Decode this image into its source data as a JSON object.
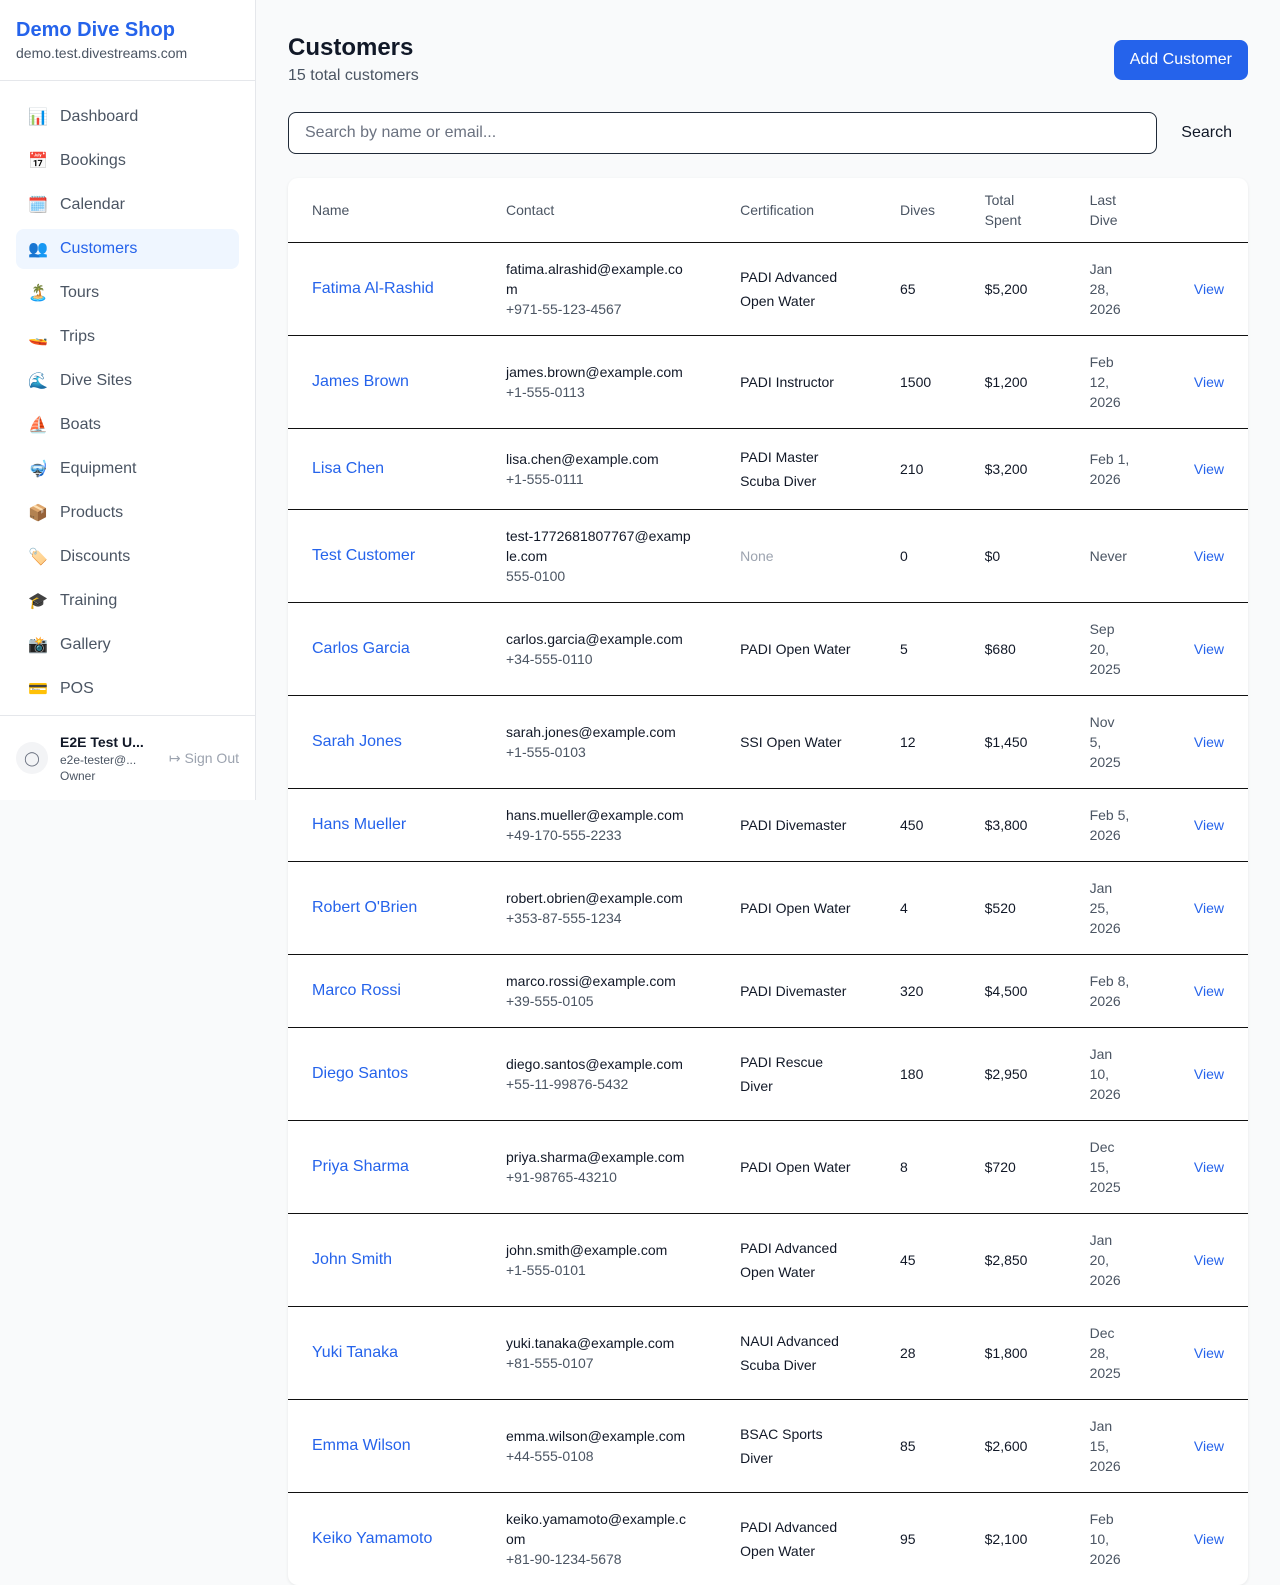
{
  "sidebar": {
    "shop_name": "Demo Dive Shop",
    "domain": "demo.test.divestreams.com",
    "items": [
      {
        "label": "Dashboard",
        "icon": "📊",
        "icon_name": "bar-chart-icon"
      },
      {
        "label": "Bookings",
        "icon": "📅",
        "icon_name": "calendar-17-icon"
      },
      {
        "label": "Calendar",
        "icon": "🗓️",
        "icon_name": "spiral-calendar-icon"
      },
      {
        "label": "Customers",
        "icon": "👥",
        "icon_name": "users-icon",
        "active": true
      },
      {
        "label": "Tours",
        "icon": "🏝️",
        "icon_name": "island-icon"
      },
      {
        "label": "Trips",
        "icon": "🚤",
        "icon_name": "speedboat-icon"
      },
      {
        "label": "Dive Sites",
        "icon": "🌊",
        "icon_name": "wave-icon"
      },
      {
        "label": "Boats",
        "icon": "⛵",
        "icon_name": "sailboat-icon"
      },
      {
        "label": "Equipment",
        "icon": "🤿",
        "icon_name": "diving-mask-icon"
      },
      {
        "label": "Products",
        "icon": "📦",
        "icon_name": "package-icon"
      },
      {
        "label": "Discounts",
        "icon": "🏷️",
        "icon_name": "tag-icon"
      },
      {
        "label": "Training",
        "icon": "🎓",
        "icon_name": "graduation-cap-icon"
      },
      {
        "label": "Gallery",
        "icon": "📸",
        "icon_name": "camera-icon"
      },
      {
        "label": "POS",
        "icon": "💳",
        "icon_name": "credit-card-icon"
      }
    ],
    "user": {
      "name": "E2E Test U...",
      "email": "e2e-tester@...",
      "role": "Owner",
      "sign_out": "Sign Out"
    }
  },
  "header": {
    "title": "Customers",
    "subtitle": "15 total customers",
    "add_button": "Add Customer"
  },
  "search": {
    "placeholder": "Search by name or email...",
    "value": "",
    "button": "Search"
  },
  "table": {
    "columns": [
      "Name",
      "Contact",
      "Certification",
      "Dives",
      "Total Spent",
      "Last Dive",
      ""
    ],
    "rows": [
      {
        "name": "Fatima Al-Rashid",
        "email": "fatima.alrashid@example.com",
        "phone": "+971-55-123-4567",
        "cert": "PADI Advanced Open Water",
        "dives": "65",
        "spent": "$5,200",
        "last": "Jan 28, 2026",
        "action": "View"
      },
      {
        "name": "James Brown",
        "email": "james.brown@example.com",
        "phone": "+1-555-0113",
        "cert": "PADI Instructor",
        "dives": "1500",
        "spent": "$1,200",
        "last": "Feb 12, 2026",
        "action": "View"
      },
      {
        "name": "Lisa Chen",
        "email": "lisa.chen@example.com",
        "phone": "+1-555-0111",
        "cert": "PADI Master Scuba Diver",
        "dives": "210",
        "spent": "$3,200",
        "last": "Feb 1, 2026",
        "action": "View"
      },
      {
        "name": "Test Customer",
        "email": "test-1772681807767@example.com",
        "phone": "555-0100",
        "cert": "None",
        "dives": "0",
        "spent": "$0",
        "last": "Never",
        "action": "View"
      },
      {
        "name": "Carlos Garcia",
        "email": "carlos.garcia@example.com",
        "phone": "+34-555-0110",
        "cert": "PADI Open Water",
        "dives": "5",
        "spent": "$680",
        "last": "Sep 20, 2025",
        "action": "View"
      },
      {
        "name": "Sarah Jones",
        "email": "sarah.jones@example.com",
        "phone": "+1-555-0103",
        "cert": "SSI Open Water",
        "dives": "12",
        "spent": "$1,450",
        "last": "Nov 5, 2025",
        "action": "View"
      },
      {
        "name": "Hans Mueller",
        "email": "hans.mueller@example.com",
        "phone": "+49-170-555-2233",
        "cert": "PADI Divemaster",
        "dives": "450",
        "spent": "$3,800",
        "last": "Feb 5, 2026",
        "action": "View"
      },
      {
        "name": "Robert O'Brien",
        "email": "robert.obrien@example.com",
        "phone": "+353-87-555-1234",
        "cert": "PADI Open Water",
        "dives": "4",
        "spent": "$520",
        "last": "Jan 25, 2026",
        "action": "View"
      },
      {
        "name": "Marco Rossi",
        "email": "marco.rossi@example.com",
        "phone": "+39-555-0105",
        "cert": "PADI Divemaster",
        "dives": "320",
        "spent": "$4,500",
        "last": "Feb 8, 2026",
        "action": "View"
      },
      {
        "name": "Diego Santos",
        "email": "diego.santos@example.com",
        "phone": "+55-11-99876-5432",
        "cert": "PADI Rescue Diver",
        "dives": "180",
        "spent": "$2,950",
        "last": "Jan 10, 2026",
        "action": "View"
      },
      {
        "name": "Priya Sharma",
        "email": "priya.sharma@example.com",
        "phone": "+91-98765-43210",
        "cert": "PADI Open Water",
        "dives": "8",
        "spent": "$720",
        "last": "Dec 15, 2025",
        "action": "View"
      },
      {
        "name": "John Smith",
        "email": "john.smith@example.com",
        "phone": "+1-555-0101",
        "cert": "PADI Advanced Open Water",
        "dives": "45",
        "spent": "$2,850",
        "last": "Jan 20, 2026",
        "action": "View"
      },
      {
        "name": "Yuki Tanaka",
        "email": "yuki.tanaka@example.com",
        "phone": "+81-555-0107",
        "cert": "NAUI Advanced Scuba Diver",
        "dives": "28",
        "spent": "$1,800",
        "last": "Dec 28, 2025",
        "action": "View"
      },
      {
        "name": "Emma Wilson",
        "email": "emma.wilson@example.com",
        "phone": "+44-555-0108",
        "cert": "BSAC Sports Diver",
        "dives": "85",
        "spent": "$2,600",
        "last": "Jan 15, 2026",
        "action": "View"
      },
      {
        "name": "Keiko Yamamoto",
        "email": "keiko.yamamoto@example.com",
        "phone": "+81-90-1234-5678",
        "cert": "PADI Advanced Open Water",
        "dives": "95",
        "spent": "$2,100",
        "last": "Feb 10, 2026",
        "action": "View"
      }
    ]
  }
}
